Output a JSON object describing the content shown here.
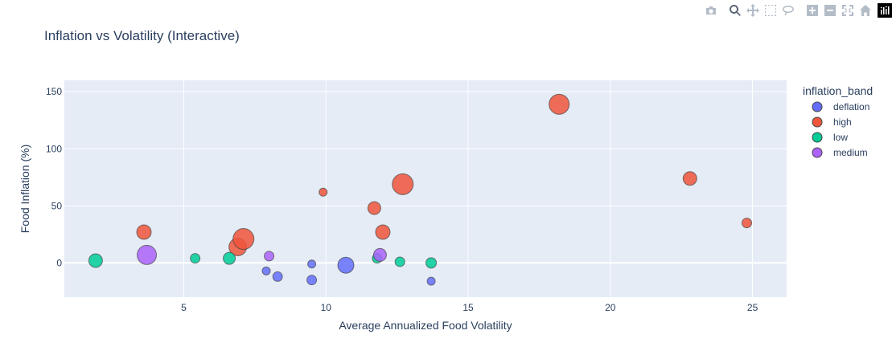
{
  "modebar": {
    "buttons": [
      "camera-icon",
      "zoom-icon",
      "pan-icon",
      "box-select-icon",
      "lasso-select-icon",
      "zoom-in-icon",
      "zoom-out-icon",
      "autoscale-icon",
      "reset-axes-icon",
      "plotly-logo-icon"
    ]
  },
  "chart_data": {
    "type": "scatter",
    "title": "Inflation vs Volatility (Interactive)",
    "xlabel": "Average Annualized Food Volatility",
    "ylabel": "Food Inflation (%)",
    "xlim": [
      0.8,
      26.2
    ],
    "ylim": [
      -30,
      160
    ],
    "xticks": [
      5,
      10,
      15,
      20,
      25
    ],
    "yticks": [
      0,
      50,
      100,
      150
    ],
    "grid": true,
    "legend_title": "inflation_band",
    "legend_position": "right",
    "series": [
      {
        "name": "deflation",
        "color": "#636efa",
        "points": [
          {
            "x": 7.9,
            "y": -7,
            "size": 10
          },
          {
            "x": 8.3,
            "y": -12,
            "size": 12
          },
          {
            "x": 9.5,
            "y": -1,
            "size": 10
          },
          {
            "x": 9.5,
            "y": -15,
            "size": 12
          },
          {
            "x": 10.7,
            "y": -2,
            "size": 20
          },
          {
            "x": 13.7,
            "y": -16,
            "size": 10
          }
        ]
      },
      {
        "name": "high",
        "color": "#ef553b",
        "points": [
          {
            "x": 3.6,
            "y": 27,
            "size": 18
          },
          {
            "x": 6.9,
            "y": 14,
            "size": 22
          },
          {
            "x": 7.1,
            "y": 21,
            "size": 26
          },
          {
            "x": 9.9,
            "y": 62,
            "size": 10
          },
          {
            "x": 11.7,
            "y": 48,
            "size": 16
          },
          {
            "x": 12.0,
            "y": 27,
            "size": 18
          },
          {
            "x": 12.7,
            "y": 69,
            "size": 26
          },
          {
            "x": 18.2,
            "y": 139,
            "size": 25
          },
          {
            "x": 22.8,
            "y": 74,
            "size": 17
          },
          {
            "x": 24.8,
            "y": 35,
            "size": 12
          }
        ]
      },
      {
        "name": "low",
        "color": "#00cc96",
        "points": [
          {
            "x": 1.9,
            "y": 2,
            "size": 17
          },
          {
            "x": 5.4,
            "y": 4,
            "size": 12
          },
          {
            "x": 6.6,
            "y": 4,
            "size": 15
          },
          {
            "x": 11.8,
            "y": 4,
            "size": 12
          },
          {
            "x": 12.6,
            "y": 1,
            "size": 12
          },
          {
            "x": 13.7,
            "y": 0,
            "size": 13
          }
        ]
      },
      {
        "name": "medium",
        "color": "#ab63fa",
        "points": [
          {
            "x": 3.7,
            "y": 7,
            "size": 24
          },
          {
            "x": 8.0,
            "y": 6,
            "size": 12
          },
          {
            "x": 11.9,
            "y": 7,
            "size": 16
          }
        ]
      }
    ]
  }
}
